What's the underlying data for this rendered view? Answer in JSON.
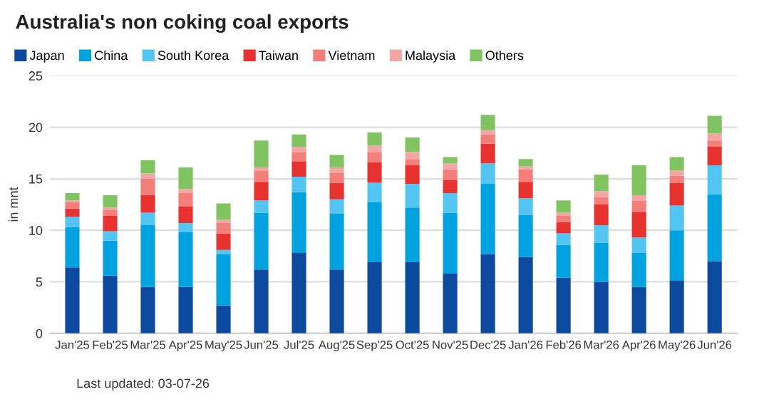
{
  "chart_data": {
    "type": "bar",
    "stacked": true,
    "title": "Australia's non coking coal exports",
    "ylabel": "in mnt",
    "categories": [
      "Jan'25",
      "Feb'25",
      "Mar'25",
      "Apr'25",
      "May'25",
      "Jun'25",
      "Jul'25",
      "Aug'25",
      "Sep'25",
      "Oct'25",
      "Nov'25",
      "Dec'25",
      "Jan'26",
      "Feb'26",
      "Mar'26",
      "Apr'26",
      "May'26",
      "Jun'26"
    ],
    "series": [
      {
        "name": "Japan",
        "color": "#0b4a9e",
        "values": [
          6.4,
          5.6,
          4.5,
          4.5,
          2.7,
          6.2,
          7.8,
          6.2,
          6.9,
          6.9,
          5.8,
          7.7,
          7.4,
          5.4,
          5.0,
          4.5,
          5.1,
          7.0
        ]
      },
      {
        "name": "China",
        "color": "#00a3e0",
        "values": [
          3.9,
          3.4,
          6.0,
          5.3,
          5.0,
          5.5,
          5.9,
          5.4,
          5.8,
          5.3,
          5.9,
          6.8,
          4.1,
          3.2,
          3.8,
          3.3,
          4.9,
          6.5
        ]
      },
      {
        "name": "South Korea",
        "color": "#52c5f2",
        "values": [
          1.0,
          0.9,
          1.2,
          0.9,
          0.4,
          1.2,
          1.5,
          1.4,
          1.9,
          2.3,
          1.9,
          2.0,
          1.6,
          1.1,
          1.7,
          1.5,
          2.4,
          2.8
        ]
      },
      {
        "name": "Taiwan",
        "color": "#e8322f",
        "values": [
          0.8,
          1.5,
          1.7,
          1.6,
          1.6,
          1.8,
          1.5,
          1.6,
          2.0,
          1.8,
          1.3,
          1.9,
          1.6,
          1.1,
          2.0,
          2.5,
          2.2,
          1.8
        ]
      },
      {
        "name": "Vietnam",
        "color": "#f47e7a",
        "values": [
          0.6,
          0.6,
          1.6,
          1.3,
          1.0,
          1.1,
          0.9,
          1.0,
          1.0,
          0.6,
          1.0,
          0.9,
          1.2,
          0.6,
          0.7,
          1.1,
          0.7,
          0.6
        ]
      },
      {
        "name": "Malaysia",
        "color": "#f4a6a4",
        "values": [
          0.2,
          0.2,
          0.5,
          0.4,
          0.3,
          0.3,
          0.5,
          0.5,
          0.6,
          0.7,
          0.6,
          0.4,
          0.3,
          0.3,
          0.6,
          0.5,
          0.5,
          0.7
        ]
      },
      {
        "name": "Others",
        "color": "#80c462",
        "values": [
          0.7,
          1.2,
          1.3,
          2.1,
          1.6,
          2.6,
          1.2,
          1.2,
          1.3,
          1.4,
          0.6,
          1.5,
          0.7,
          1.2,
          1.6,
          2.9,
          1.3,
          1.7
        ]
      }
    ],
    "ylim": [
      0,
      25
    ],
    "yticks": [
      0,
      5,
      10,
      15,
      20,
      25
    ],
    "grid": "y",
    "legend": "top left",
    "annotations": [
      "Last updated: 03-07-26"
    ]
  }
}
